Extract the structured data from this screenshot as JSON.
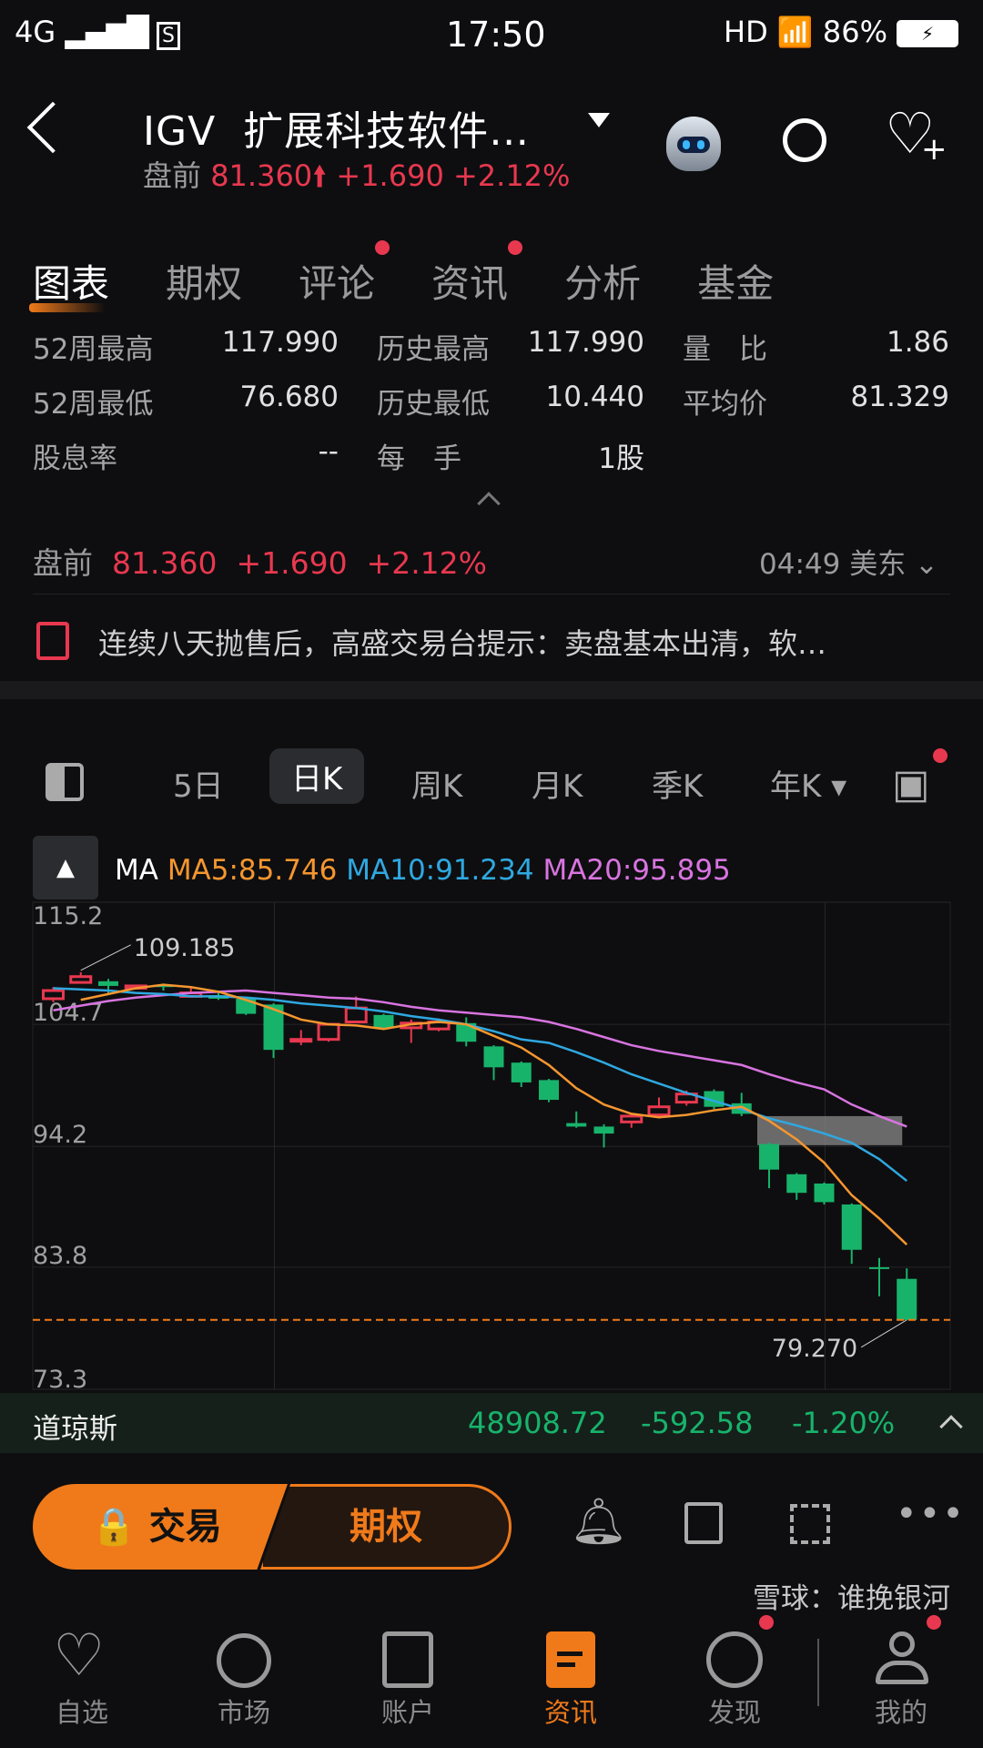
{
  "status_bar": {
    "network": "4G",
    "time": "17:50",
    "hd": "HD",
    "battery": "86%"
  },
  "header": {
    "symbol": "IGV",
    "name": "扩展科技软件…",
    "session": "盘前",
    "price": "81.360",
    "change": "+1.690",
    "change_pct": "+2.12%"
  },
  "tabs": [
    {
      "label": "图表",
      "active": true
    },
    {
      "label": "期权"
    },
    {
      "label": "评论",
      "dot": true
    },
    {
      "label": "资讯",
      "dot": true
    },
    {
      "label": "分析"
    },
    {
      "label": "基金"
    }
  ],
  "stats": [
    [
      {
        "label": "52周最高",
        "value": "117.990"
      },
      {
        "label": "历史最高",
        "value": "117.990"
      },
      {
        "label": "量　比",
        "value": "1.86"
      }
    ],
    [
      {
        "label": "52周最低",
        "value": "76.680"
      },
      {
        "label": "历史最低",
        "value": "10.440"
      },
      {
        "label": "平均价",
        "value": "81.329"
      }
    ],
    [
      {
        "label": "股息率",
        "value": "--"
      },
      {
        "label": "每　手",
        "value": "1股"
      }
    ]
  ],
  "premarket": {
    "session": "盘前",
    "price": "81.360",
    "change": "+1.690",
    "change_pct": "+2.12%",
    "time": "04:49 美东"
  },
  "news": {
    "headline": "连续八天抛售后，高盛交易台提示：卖盘基本出清，软…"
  },
  "timeframes": [
    {
      "label": "5日"
    },
    {
      "label": "日K",
      "active": true
    },
    {
      "label": "周K"
    },
    {
      "label": "月K"
    },
    {
      "label": "季K"
    },
    {
      "label": "年K"
    }
  ],
  "ma_legend": {
    "label": "MA",
    "ma5": "MA5:85.746",
    "ma10": "MA10:91.234",
    "ma20": "MA20:95.895"
  },
  "colors": {
    "up": "#e8384f",
    "down": "#18b36b",
    "ma5": "#f5962f",
    "ma10": "#2fa8e0",
    "ma20": "#d874e0",
    "accent": "#f07a1a"
  },
  "chart_data": {
    "type": "candlestick",
    "y_ticks": [
      "115.2",
      "104.7",
      "94.2",
      "83.8",
      "73.3"
    ],
    "ylim": [
      73.3,
      115.2
    ],
    "grid": true,
    "high_label": "109.185",
    "low_label": "79.270",
    "last_price_line": 79.27,
    "highlight_range": {
      "from_candle": 27,
      "to_candle": 32,
      "price_low": 94.3,
      "price_high": 96.8
    },
    "candles": [
      [
        106.9,
        107.6,
        107.9,
        106.6
      ],
      [
        108.3,
        108.8,
        109.185,
        108.2
      ],
      [
        108.4,
        108.0,
        108.6,
        107.3
      ],
      [
        107.8,
        108.0,
        108.1,
        107.7
      ],
      [
        108.1,
        107.9,
        108.2,
        107.6
      ],
      [
        107.1,
        107.4,
        107.9,
        107.0
      ],
      [
        107.2,
        106.9,
        107.6,
        106.8
      ],
      [
        106.9,
        105.6,
        107.0,
        105.5
      ],
      [
        106.4,
        102.5,
        106.5,
        101.8
      ],
      [
        103.3,
        103.4,
        104.2,
        102.9
      ],
      [
        103.4,
        104.7,
        104.8,
        103.2
      ],
      [
        104.9,
        106.1,
        107.1,
        104.8
      ],
      [
        105.5,
        104.4,
        105.6,
        104.3
      ],
      [
        104.4,
        104.8,
        105.1,
        103.1
      ],
      [
        104.3,
        104.9,
        105.2,
        104.1
      ],
      [
        104.8,
        103.2,
        105.3,
        102.8
      ],
      [
        102.8,
        101.0,
        102.9,
        99.9
      ],
      [
        101.4,
        99.7,
        101.5,
        99.3
      ],
      [
        99.9,
        98.2,
        100.0,
        98.0
      ],
      [
        96.2,
        95.9,
        97.2,
        95.8
      ],
      [
        95.9,
        95.3,
        96.1,
        94.1
      ],
      [
        96.3,
        96.8,
        97.0,
        95.8
      ],
      [
        96.9,
        97.6,
        98.4,
        96.6
      ],
      [
        98.0,
        98.7,
        99.0,
        97.7
      ],
      [
        98.95,
        97.6,
        99.1,
        97.4
      ],
      [
        97.9,
        97.0,
        98.8,
        96.8
      ],
      [
        94.4,
        92.2,
        94.5,
        90.6
      ],
      [
        91.8,
        90.2,
        91.9,
        89.6
      ],
      [
        91.0,
        89.4,
        91.1,
        89.2
      ],
      [
        89.2,
        85.3,
        89.3,
        84.1
      ],
      [
        83.8,
        83.75,
        84.6,
        81.3
      ],
      [
        82.8,
        79.27,
        83.7,
        79.27
      ]
    ],
    "ma5": [
      null,
      106.8,
      107.3,
      107.8,
      108.1,
      107.9,
      107.5,
      106.8,
      106.0,
      105.1,
      104.7,
      104.6,
      104.3,
      104.7,
      104.9,
      104.7,
      103.7,
      102.7,
      101.2,
      99.2,
      97.8,
      97.0,
      96.7,
      96.9,
      97.3,
      97.6,
      96.4,
      94.8,
      92.8,
      90.0,
      88.0,
      85.75
    ],
    "ma10": [
      107.8,
      107.7,
      107.6,
      107.4,
      107.3,
      107.1,
      107.1,
      107.0,
      106.8,
      106.5,
      106.3,
      106.1,
      105.8,
      105.4,
      105.1,
      104.7,
      104.1,
      103.4,
      103.1,
      102.3,
      101.4,
      100.4,
      99.6,
      98.8,
      98.1,
      97.4,
      96.6,
      96.0,
      95.3,
      94.5,
      93.1,
      91.23
    ],
    "ma20": [
      105.9,
      106.3,
      106.7,
      107.0,
      107.2,
      107.4,
      107.5,
      107.6,
      107.4,
      107.2,
      107.0,
      106.9,
      106.6,
      106.2,
      105.9,
      105.7,
      105.5,
      105.3,
      104.9,
      104.3,
      103.6,
      102.9,
      102.4,
      102.0,
      101.6,
      101.2,
      100.4,
      99.7,
      99.1,
      97.8,
      96.8,
      95.9
    ]
  },
  "index_bar": {
    "name": "道琼斯",
    "value": "48908.72",
    "change": "-592.58",
    "change_pct": "-1.20%"
  },
  "actions": {
    "trade": "交易",
    "options": "期权"
  },
  "nav": [
    {
      "label": "自选",
      "icon": "heart-icon"
    },
    {
      "label": "市场",
      "icon": "planet-icon"
    },
    {
      "label": "账户",
      "icon": "wallet-icon"
    },
    {
      "label": "资讯",
      "icon": "news-icon",
      "active": true
    },
    {
      "label": "发现",
      "icon": "compass-icon",
      "dot": true
    },
    {
      "label": "我的",
      "icon": "user-icon",
      "dot": true
    }
  ],
  "watermark": "雪球：谁挽银河"
}
